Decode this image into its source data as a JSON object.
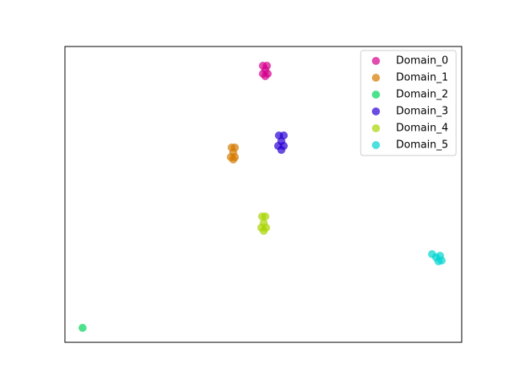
{
  "chart_data": {
    "type": "scatter",
    "xlim": [
      0,
      495
    ],
    "ylim": [
      0,
      369
    ],
    "legend": "upper right",
    "series": [
      {
        "name": "Domain_0",
        "color": "#d4008c",
        "x": [
          247,
          252,
          250,
          247,
          253,
          250
        ],
        "y": [
          345,
          345,
          340,
          335,
          335,
          332
        ]
      },
      {
        "name": "Domain_1",
        "color": "#d47a00",
        "x": [
          208,
          212,
          210,
          207,
          212,
          210
        ],
        "y": [
          243,
          243,
          237,
          231,
          231,
          228
        ]
      },
      {
        "name": "Domain_2",
        "color": "#00d45a",
        "x": [
          22
        ],
        "y": [
          18
        ]
      },
      {
        "name": "Domain_3",
        "color": "#2a00d4",
        "x": [
          267,
          273,
          270,
          266,
          273,
          270
        ],
        "y": [
          258,
          258,
          251,
          245,
          245,
          240
        ]
      },
      {
        "name": "Domain_4",
        "color": "#a8d400",
        "x": [
          246,
          250,
          248,
          245,
          251,
          248
        ],
        "y": [
          157,
          157,
          149,
          143,
          143,
          139
        ]
      },
      {
        "name": "Domain_5",
        "color": "#00d4d0",
        "x": [
          458,
          468,
          466,
          470,
          463
        ],
        "y": [
          110,
          108,
          101,
          102,
          106
        ]
      }
    ]
  }
}
